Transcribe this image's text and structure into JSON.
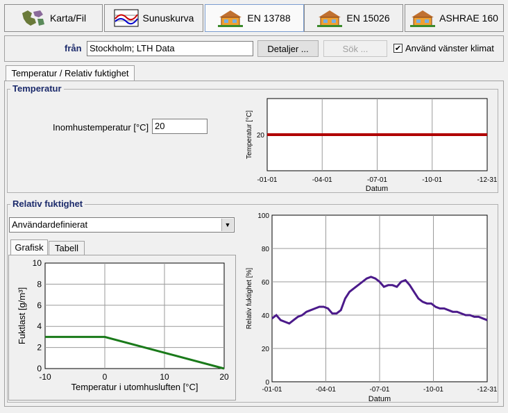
{
  "tabs": [
    {
      "label": "Karta/Fil",
      "icon": "map-icon"
    },
    {
      "label": "Sunuskurva",
      "icon": "curve-icon"
    },
    {
      "label": "EN 13788",
      "icon": "house-icon"
    },
    {
      "label": "EN 15026",
      "icon": "house-icon"
    },
    {
      "label": "ASHRAE 160",
      "icon": "house-icon"
    }
  ],
  "location": {
    "label": "från",
    "value": "Stockholm; LTH Data",
    "details_button": "Detaljer ...",
    "search_button": "Sök ...",
    "left_climate_label": "Använd vänster klimat",
    "left_climate_checked": true
  },
  "sub_tab": "Temperatur / Relativ fuktighet",
  "temperature": {
    "group_title": "Temperatur",
    "indoor_label": "Inomhustemperatur [°C]",
    "indoor_value": "20"
  },
  "humidity": {
    "group_title": "Relativ fuktighet",
    "mode_value": "Användardefinierat",
    "tabs": [
      "Grafisk",
      "Tabell"
    ]
  },
  "colors": {
    "temp_line": "#b00000",
    "rh_line": "#4b1a8a",
    "moisture_line": "#1a7a1a"
  },
  "chart_data": [
    {
      "type": "line",
      "ylabel": "Temperatur [°C]",
      "xlabel": "Datum",
      "x_ticks": [
        "-01-01",
        "-04-01",
        "-07-01",
        "-10-01",
        "-12-31"
      ],
      "y_ticks": [
        "20"
      ],
      "x": [
        0,
        1
      ],
      "series": [
        {
          "values": [
            20,
            20
          ]
        }
      ],
      "ylim": [
        16,
        24
      ],
      "grid": true
    },
    {
      "type": "line",
      "ylabel": "Relativ fuktighet [%]",
      "xlabel": "Datum",
      "x_ticks": [
        "-01-01",
        "-04-01",
        "-07-01",
        "-10-01",
        "-12-31"
      ],
      "y_ticks": [
        "0",
        "20",
        "40",
        "60",
        "80",
        "100"
      ],
      "ylim": [
        0,
        100
      ],
      "x": [
        0,
        0.02,
        0.04,
        0.06,
        0.08,
        0.1,
        0.12,
        0.14,
        0.16,
        0.18,
        0.2,
        0.22,
        0.24,
        0.26,
        0.28,
        0.3,
        0.32,
        0.34,
        0.36,
        0.38,
        0.4,
        0.42,
        0.44,
        0.46,
        0.48,
        0.5,
        0.52,
        0.54,
        0.56,
        0.58,
        0.6,
        0.62,
        0.64,
        0.66,
        0.68,
        0.7,
        0.72,
        0.74,
        0.76,
        0.78,
        0.8,
        0.82,
        0.84,
        0.86,
        0.88,
        0.9,
        0.92,
        0.94,
        0.96,
        0.98,
        1.0
      ],
      "series": [
        {
          "values": [
            38,
            40,
            37,
            36,
            35,
            37,
            39,
            40,
            42,
            43,
            44,
            45,
            45,
            44,
            41,
            41,
            43,
            50,
            54,
            56,
            58,
            60,
            62,
            63,
            62,
            60,
            57,
            58,
            58,
            57,
            60,
            61,
            58,
            54,
            50,
            48,
            47,
            47,
            45,
            44,
            44,
            43,
            42,
            42,
            41,
            40,
            40,
            39,
            39,
            38,
            37
          ]
        }
      ],
      "grid": true
    },
    {
      "type": "line",
      "xlabel": "Temperatur i utomhusluften [°C]",
      "ylabel": "Fuktlast [g/m³]",
      "x_ticks": [
        "-10",
        "0",
        "10",
        "20"
      ],
      "y_ticks": [
        "0",
        "2",
        "4",
        "6",
        "8",
        "10"
      ],
      "xlim": [
        -10,
        20
      ],
      "ylim": [
        0,
        10
      ],
      "x": [
        -10,
        0,
        20
      ],
      "series": [
        {
          "values": [
            3,
            3,
            0
          ]
        }
      ],
      "grid": true
    }
  ]
}
